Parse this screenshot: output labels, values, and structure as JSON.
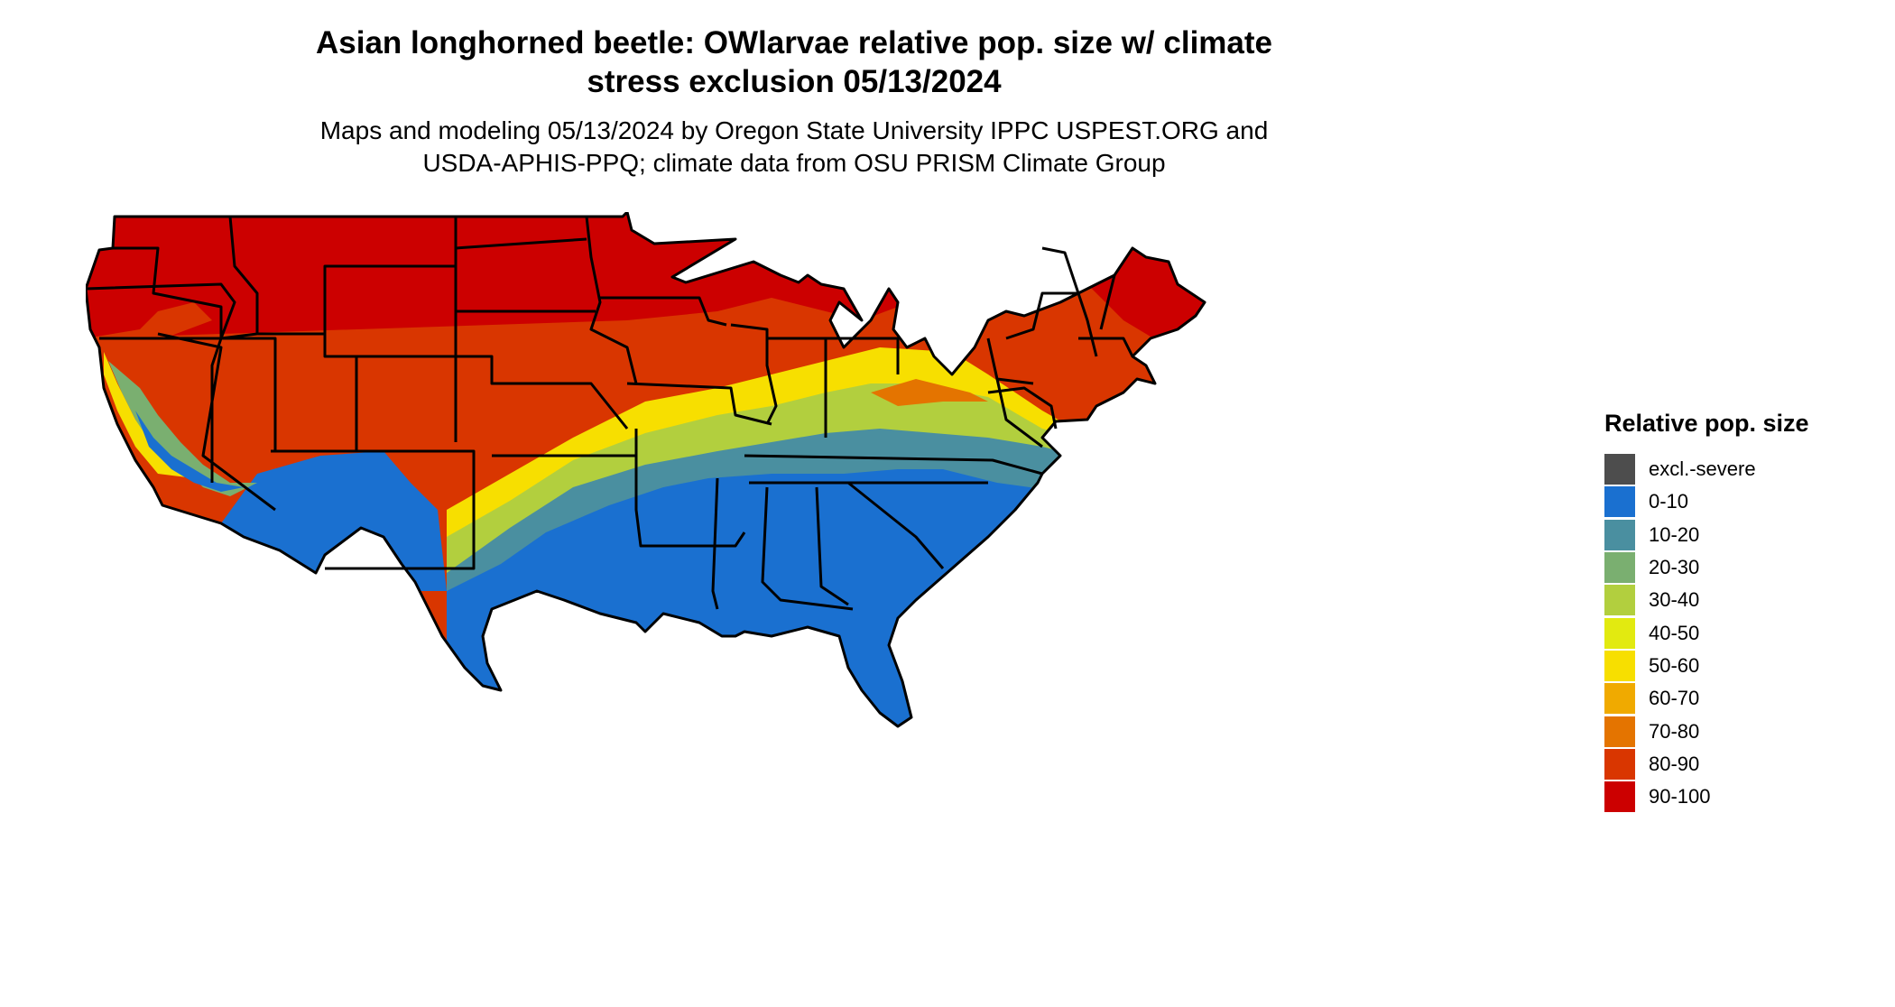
{
  "title_line1": "Asian longhorned beetle: OWlarvae relative pop. size w/ climate",
  "title_line2": "stress exclusion 05/13/2024",
  "subtitle_line1": "Maps and modeling 05/13/2024 by Oregon State University IPPC USPEST.ORG and",
  "subtitle_line2": "USDA-APHIS-PPQ; climate data from OSU PRISM Climate Group",
  "legend": {
    "title": "Relative pop. size",
    "items": [
      {
        "label": "excl.-severe",
        "color": "#4d4d4d"
      },
      {
        "label": "0-10",
        "color": "#1a70d0"
      },
      {
        "label": "10-20",
        "color": "#4a8fa0"
      },
      {
        "label": "20-30",
        "color": "#7aaf70"
      },
      {
        "label": "30-40",
        "color": "#b2cf3e"
      },
      {
        "label": "40-50",
        "color": "#e2ea10"
      },
      {
        "label": "50-60",
        "color": "#f7df00"
      },
      {
        "label": "60-70",
        "color": "#f0aa00"
      },
      {
        "label": "70-80",
        "color": "#e47400"
      },
      {
        "label": "80-90",
        "color": "#d93600"
      },
      {
        "label": "90-100",
        "color": "#cc0000"
      }
    ]
  },
  "map": {
    "region": "Contiguous United States",
    "boundary_color": "#000000"
  }
}
